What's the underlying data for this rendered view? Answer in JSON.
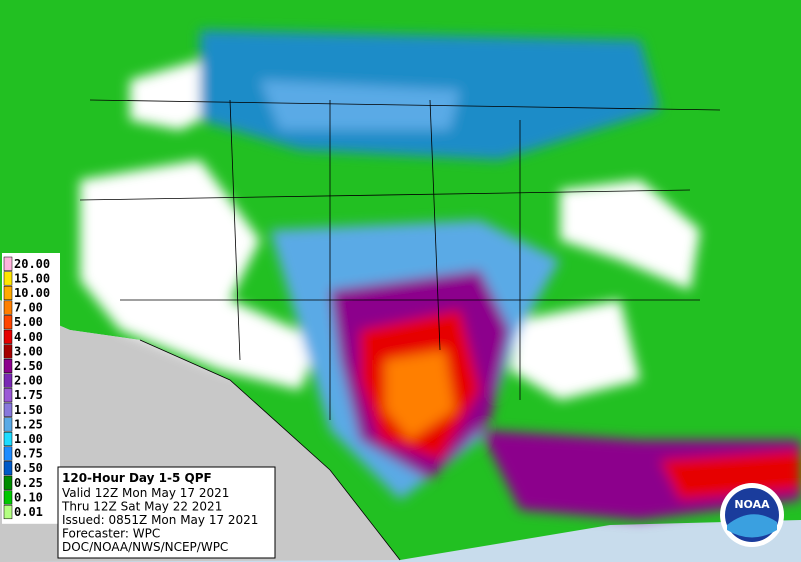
{
  "legend": {
    "items": [
      {
        "label": "20.00",
        "color": "#ffb4dc"
      },
      {
        "label": "15.00",
        "color": "#ffe600"
      },
      {
        "label": "10.00",
        "color": "#ffaa00"
      },
      {
        "label": "7.00",
        "color": "#ff7f00"
      },
      {
        "label": "5.00",
        "color": "#ff4500"
      },
      {
        "label": "4.00",
        "color": "#e60000"
      },
      {
        "label": "3.00",
        "color": "#a50000"
      },
      {
        "label": "2.50",
        "color": "#8c008c"
      },
      {
        "label": "2.00",
        "color": "#7a28b4"
      },
      {
        "label": "1.75",
        "color": "#9b59d6"
      },
      {
        "label": "1.50",
        "color": "#8878dc"
      },
      {
        "label": "1.25",
        "color": "#5aaae6"
      },
      {
        "label": "1.00",
        "color": "#1edcff"
      },
      {
        "label": "0.75",
        "color": "#1e8cff"
      },
      {
        "label": "0.50",
        "color": "#005ac8"
      },
      {
        "label": "0.25",
        "color": "#008c00"
      },
      {
        "label": "0.10",
        "color": "#00c800"
      },
      {
        "label": "0.01",
        "color": "#b4ff82"
      }
    ]
  },
  "info": {
    "title": "120-Hour Day 1-5 QPF",
    "lines": [
      "Valid 12Z Mon May 17 2021",
      "Thru 12Z Sat May 22 2021",
      "Issued: 0851Z Mon May 17 2021",
      "Forecaster: WPC",
      "DOC/NOAA/NWS/NCEP/WPC"
    ]
  },
  "logo": {
    "text": "NOAA"
  }
}
